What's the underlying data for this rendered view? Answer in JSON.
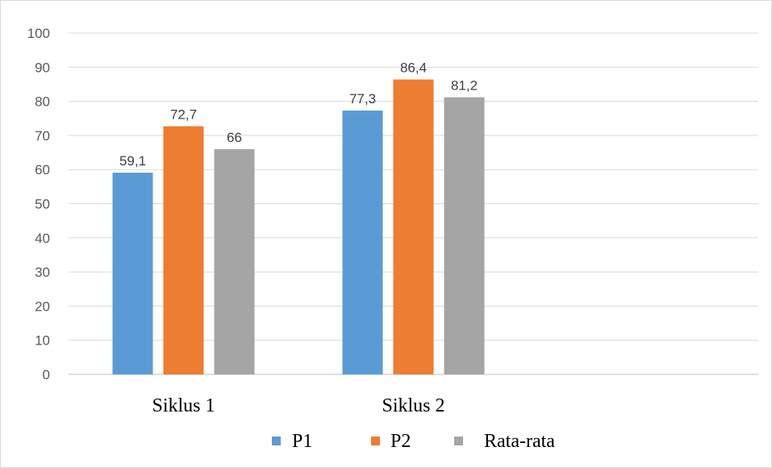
{
  "chart_data": {
    "type": "bar",
    "categories": [
      "Siklus 1",
      "Siklus 2"
    ],
    "series": [
      {
        "name": "P1",
        "values": [
          59.1,
          77.3
        ],
        "labels": [
          "59,1",
          "77,3"
        ]
      },
      {
        "name": "P2",
        "values": [
          72.7,
          86.4
        ],
        "labels": [
          "72,7",
          "86,4"
        ]
      },
      {
        "name": "Rata-rata",
        "values": [
          66,
          81.2
        ],
        "labels": [
          "66",
          "81,2"
        ]
      }
    ],
    "colors": [
      "#5b9bd5",
      "#ed7d31",
      "#a5a5a5"
    ],
    "ylim": [
      0,
      100
    ],
    "yticks": [
      0,
      10,
      20,
      30,
      40,
      50,
      60,
      70,
      80,
      90,
      100
    ],
    "ytick_labels": [
      "0",
      "10",
      "20",
      "30",
      "40",
      "50",
      "60",
      "70",
      "80",
      "90",
      "100"
    ],
    "grid": true,
    "legend_position": "bottom",
    "xlabel": "",
    "ylabel": ""
  }
}
